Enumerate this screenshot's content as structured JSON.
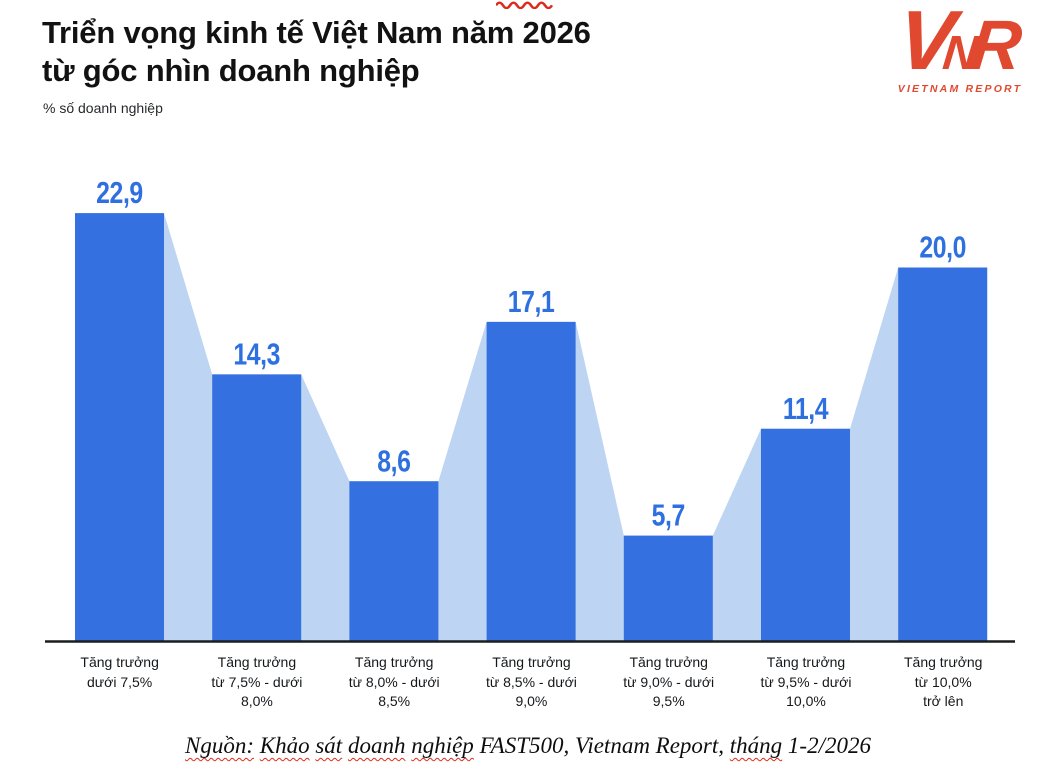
{
  "header": {
    "title_line1": "Triển vọng kinh tế Việt Nam năm 2026",
    "title_line2": "từ góc nhìn doanh nghiệp",
    "subtitle": "% số doanh nghiệp"
  },
  "logo": {
    "letters": [
      "V",
      "N",
      "R"
    ],
    "wordmark": "VIETNAM REPORT",
    "color": "#e0492f"
  },
  "icons": {
    "top_squiggle": "red-spellcheck-wavy-mark"
  },
  "chart_data": {
    "type": "bar",
    "title": "Triển vọng kinh tế Việt Nam năm 2026 từ góc nhìn doanh nghiệp",
    "ylabel": "% số doanh nghiệp",
    "xlabel": "",
    "ylim": [
      0,
      25
    ],
    "grid": false,
    "legend": false,
    "categories": [
      "Tăng trưởng dưới 7,5%",
      "Tăng trưởng từ 7,5% - dưới 8,0%",
      "Tăng trưởng từ 8,0% - dưới 8,5%",
      "Tăng trưởng từ 8,5% - dưới 9,0%",
      "Tăng trưởng từ 9,0% - dưới 9,5%",
      "Tăng trưởng từ 9,5% - dưới 10,0%",
      "Tăng trưởng từ 10,0% trở lên"
    ],
    "category_lines": [
      [
        "Tăng trưởng",
        "dưới 7,5%"
      ],
      [
        "Tăng trưởng",
        "từ 7,5% - dưới",
        "8,0%"
      ],
      [
        "Tăng trưởng",
        "từ 8,0% - dưới",
        "8,5%"
      ],
      [
        "Tăng trưởng",
        "từ 8,5% - dưới",
        "9,0%"
      ],
      [
        "Tăng trưởng",
        "từ 9,0% - dưới",
        "9,5%"
      ],
      [
        "Tăng trưởng",
        "từ 9,5% - dưới",
        "10,0%"
      ],
      [
        "Tăng trưởng",
        "từ 10,0%",
        "trở lên"
      ]
    ],
    "values": [
      22.9,
      14.3,
      8.6,
      17.1,
      5.7,
      11.4,
      20.0
    ],
    "value_labels": [
      "22,9",
      "14,3",
      "8,6",
      "17,1",
      "5,7",
      "11,4",
      "20,0"
    ],
    "bar_color": "#3470e0",
    "area_color": "#bdd5f3",
    "value_label_color": "#2e70e0",
    "axis_line_color": "#1b1d1f"
  },
  "source": {
    "full": "Nguồn: Khảo sát doanh nghiệp FAST500, Vietnam Report, tháng 1-2/2026",
    "segments": [
      {
        "text": "Nguồn:",
        "squiggle": true
      },
      {
        "text": " ",
        "squiggle": false
      },
      {
        "text": "Khảo",
        "squiggle": true
      },
      {
        "text": " ",
        "squiggle": false
      },
      {
        "text": "sát",
        "squiggle": true
      },
      {
        "text": " ",
        "squiggle": false
      },
      {
        "text": "doanh",
        "squiggle": true
      },
      {
        "text": " ",
        "squiggle": false
      },
      {
        "text": "nghiệp",
        "squiggle": true
      },
      {
        "text": " FAST500, Vietnam Report, ",
        "squiggle": false
      },
      {
        "text": "tháng",
        "squiggle": true
      },
      {
        "text": " 1-2/2026",
        "squiggle": false
      }
    ]
  }
}
